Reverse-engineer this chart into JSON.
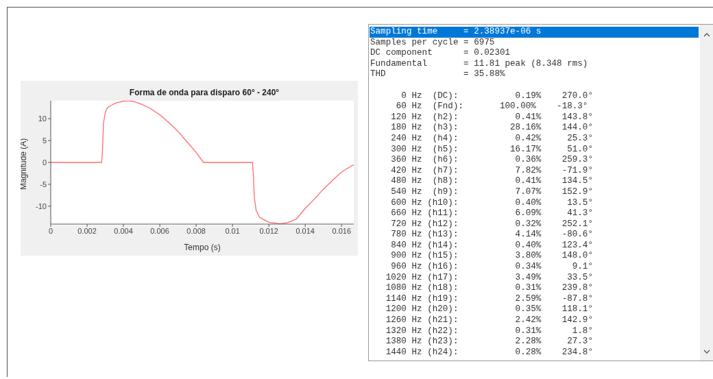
{
  "chart_data": [
    {
      "type": "line",
      "title": "Forma de onda para disparo 60° - 240°",
      "xlabel": "Tempo (s)",
      "ylabel": "Magnitude (A)",
      "x": [
        0,
        0.0028,
        0.00285,
        0.0029,
        0.003,
        0.0031,
        0.0033,
        0.0036,
        0.004,
        0.0043,
        0.0046,
        0.005,
        0.0055,
        0.006,
        0.0065,
        0.007,
        0.0075,
        0.008,
        0.0084,
        0.0111,
        0.01115,
        0.0112,
        0.0113,
        0.0115,
        0.012,
        0.0126,
        0.013,
        0.0135,
        0.014,
        0.0145,
        0.015,
        0.0155,
        0.016,
        0.01667
      ],
      "series": [
        {
          "color": "#ff6b6b",
          "values": [
            0,
            0,
            3,
            8.9,
            11.4,
            12.4,
            13,
            13.6,
            14,
            14.1,
            13.9,
            13.3,
            12.3,
            10.9,
            9.1,
            7.1,
            4.7,
            2.3,
            0,
            0,
            -3,
            -8,
            -11,
            -12.6,
            -13.7,
            -14,
            -13.8,
            -13,
            -10.5,
            -8.4,
            -6.1,
            -4.1,
            -2.2,
            -0.5
          ]
        }
      ],
      "xlim": [
        0,
        0.01667
      ],
      "ylim": [
        -14.1,
        14.1
      ],
      "xticks": [
        0,
        0.002,
        0.004,
        0.006,
        0.008,
        0.01,
        0.012,
        0.014,
        0.016
      ],
      "yticks": [
        -10,
        -5,
        0,
        5,
        10
      ],
      "grid": false,
      "legend": false,
      "marker": "none",
      "line_style": "solid"
    },
    {
      "type": "other",
      "annotations": [
        "Sampling time     = 2.38937e-06 s",
        "Samples per cycle = 6975",
        "DC component      = 0.02301",
        "Fundamental       = 11.81 peak (8.348 rms)",
        "THD               = 35.88%",
        "      0 Hz  (DC):           0.19%    270.0°",
        "     60 Hz  (Fnd):       100.00%    -18.3°",
        "    120 Hz  (h2):           0.41%    143.8°",
        "    180 Hz  (h3):          28.16%    144.0°",
        "    240 Hz  (h4):           0.42%     25.3°",
        "    300 Hz  (h5):          16.17%     51.0°",
        "    360 Hz  (h6):           0.36%    259.3°",
        "    420 Hz  (h7):           7.82%    -71.9°",
        "    480 Hz  (h8):           0.41%    134.5°",
        "    540 Hz  (h9):           7.07%    152.9°",
        "    600 Hz (h10):           0.40%     13.5°",
        "    660 Hz (h11):           6.09%     41.3°",
        "    720 Hz (h12):           0.32%    252.1°",
        "    780 Hz (h13):           4.14%    -80.6°",
        "    840 Hz (h14):           0.40%    123.4°",
        "    900 Hz (h15):           3.80%    148.0°",
        "    960 Hz (h16):           0.34%      9.1°",
        "   1020 Hz (h17):           3.49%     33.5°",
        "   1080 Hz (h18):           0.31%    239.8°",
        "   1140 Hz (h19):           2.59%    -87.8°",
        "   1200 Hz (h20):           0.35%    118.1°",
        "   1260 Hz (h21):           2.42%    142.9°",
        "   1320 Hz (h22):           0.31%      1.8°",
        "   1380 Hz (h23):           2.28%     27.3°",
        "   1440 Hz (h24):           0.28%    234.8°"
      ]
    }
  ]
}
